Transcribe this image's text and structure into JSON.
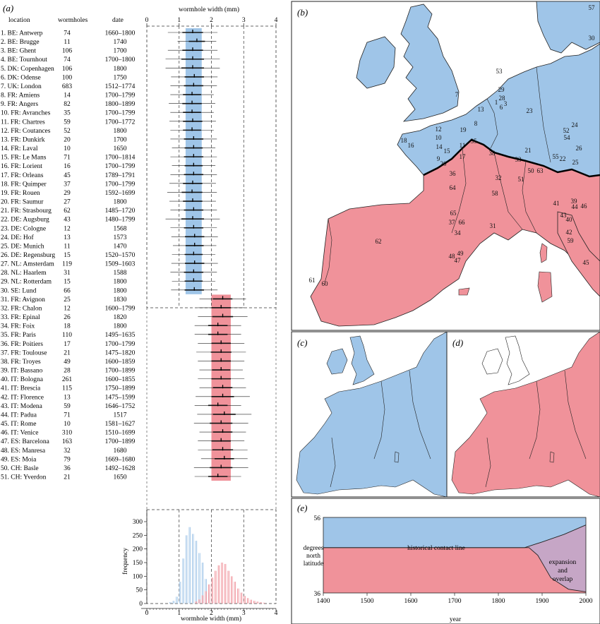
{
  "panels": {
    "a": "(a)",
    "b": "(b)",
    "c": "(c)",
    "d": "(d)",
    "e": "(e)"
  },
  "colors": {
    "north": "#9fc5e8",
    "south": "#f0929a",
    "overlap": "#c6a6c6",
    "grey": "#bbbbbb"
  },
  "table": {
    "headers": {
      "location": "location",
      "wormholes": "wormholes",
      "date": "date"
    },
    "rows": [
      {
        "loc": "1. BE: Antwerp",
        "n": "74",
        "date": "1660–1800",
        "mean": 1.42,
        "sd": 0.32
      },
      {
        "loc": "2. BE: Brugge",
        "n": "11",
        "date": "1740",
        "mean": 1.55,
        "sd": 0.25
      },
      {
        "loc": "3. BE: Ghent",
        "n": "106",
        "date": "1700",
        "mean": 1.42,
        "sd": 0.32
      },
      {
        "loc": "4. BE: Tournhout",
        "n": "74",
        "date": "1700–1800",
        "mean": 1.42,
        "sd": 0.35
      },
      {
        "loc": "5. DK: Copenhagen",
        "n": "106",
        "date": "1800",
        "mean": 1.42,
        "sd": 0.35
      },
      {
        "loc": "6. DK: Odense",
        "n": "100",
        "date": "1750",
        "mean": 1.47,
        "sd": 0.3
      },
      {
        "loc": "7. UK: London",
        "n": "683",
        "date": "1512–1774",
        "mean": 1.45,
        "sd": 0.3
      },
      {
        "loc": "8. FR: Amiens",
        "n": "14",
        "date": "1700–1799",
        "mean": 1.4,
        "sd": 0.28
      },
      {
        "loc": "9. FR: Angers",
        "n": "82",
        "date": "1800–1899",
        "mean": 1.4,
        "sd": 0.3
      },
      {
        "loc": "10. FR: Avranches",
        "n": "35",
        "date": "1700–1799",
        "mean": 1.4,
        "sd": 0.28
      },
      {
        "loc": "11. FR: Chartres",
        "n": "59",
        "date": "1700–1772",
        "mean": 1.42,
        "sd": 0.3
      },
      {
        "loc": "12. FR: Coutances",
        "n": "52",
        "date": "1800",
        "mean": 1.4,
        "sd": 0.28
      },
      {
        "loc": "13. FR: Dunkirk",
        "n": "20",
        "date": "1700",
        "mean": 1.45,
        "sd": 0.3
      },
      {
        "loc": "14. FR: Laval",
        "n": "10",
        "date": "1650",
        "mean": 1.45,
        "sd": 0.28
      },
      {
        "loc": "15. FR: Le Mans",
        "n": "71",
        "date": "1700–1814",
        "mean": 1.45,
        "sd": 0.3
      },
      {
        "loc": "16. FR: Lorient",
        "n": "16",
        "date": "1700–1799",
        "mean": 1.45,
        "sd": 0.28
      },
      {
        "loc": "17. FR: Orleans",
        "n": "45",
        "date": "1789–1791",
        "mean": 1.45,
        "sd": 0.3
      },
      {
        "loc": "18. FR: Quimper",
        "n": "37",
        "date": "1700–1799",
        "mean": 1.42,
        "sd": 0.3
      },
      {
        "loc": "19. FR: Rouen",
        "n": "29",
        "date": "1592–1699",
        "mean": 1.4,
        "sd": 0.32
      },
      {
        "loc": "20. FR: Saumur",
        "n": "27",
        "date": "1800",
        "mean": 1.42,
        "sd": 0.3
      },
      {
        "loc": "21. FR: Strasbourg",
        "n": "62",
        "date": "1485–1720",
        "mean": 1.45,
        "sd": 0.3
      },
      {
        "loc": "22. DE: Augsburg",
        "n": "43",
        "date": "1480–1799",
        "mean": 1.42,
        "sd": 0.35
      },
      {
        "loc": "23. DE: Cologne",
        "n": "12",
        "date": "1568",
        "mean": 1.45,
        "sd": 0.3
      },
      {
        "loc": "24. DE: Hof",
        "n": "13",
        "date": "1573",
        "mean": 1.48,
        "sd": 0.3
      },
      {
        "loc": "25. DE: Munich",
        "n": "11",
        "date": "1470",
        "mean": 1.48,
        "sd": 0.28
      },
      {
        "loc": "26. DE: Regensburg",
        "n": "15",
        "date": "1520–1570",
        "mean": 1.45,
        "sd": 0.28
      },
      {
        "loc": "27. NL: Amsterdam",
        "n": "119",
        "date": "1509–1603",
        "mean": 1.48,
        "sd": 0.3
      },
      {
        "loc": "28. NL: Haarlem",
        "n": "31",
        "date": "1588",
        "mean": 1.45,
        "sd": 0.3
      },
      {
        "loc": "29. NL: Rotterdam",
        "n": "15",
        "date": "1800",
        "mean": 1.45,
        "sd": 0.28
      },
      {
        "loc": "30. SE: Lund",
        "n": "66",
        "date": "1800",
        "mean": 1.47,
        "sd": 0.3
      },
      {
        "loc": "31. FR: Avignon",
        "n": "25",
        "date": "1830",
        "mean": 2.35,
        "sd": 0.3
      },
      {
        "loc": "32. FR: Chalon",
        "n": "12",
        "date": "1600–1799",
        "mean": 2.3,
        "sd": 0.3
      },
      {
        "loc": "33. FR: Epinal",
        "n": "26",
        "date": "1820",
        "mean": 2.35,
        "sd": 0.32
      },
      {
        "loc": "34. FR: Foix",
        "n": "18",
        "date": "1800",
        "mean": 2.2,
        "sd": 0.3
      },
      {
        "loc": "35. FR: Paris",
        "n": "110",
        "date": "1495–1635",
        "mean": 2.2,
        "sd": 0.3
      },
      {
        "loc": "36. FR: Poitiers",
        "n": "17",
        "date": "1700–1799",
        "mean": 2.3,
        "sd": 0.3
      },
      {
        "loc": "37. FR: Toulouse",
        "n": "21",
        "date": "1475–1820",
        "mean": 2.3,
        "sd": 0.32
      },
      {
        "loc": "38. FR: Troyes",
        "n": "49",
        "date": "1600–1859",
        "mean": 2.3,
        "sd": 0.3
      },
      {
        "loc": "39. IT: Bassano",
        "n": "28",
        "date": "1700–1899",
        "mean": 2.3,
        "sd": 0.28
      },
      {
        "loc": "40. IT: Bologna",
        "n": "261",
        "date": "1600–1855",
        "mean": 2.3,
        "sd": 0.3
      },
      {
        "loc": "41. IT: Brescia",
        "n": "115",
        "date": "1750–1899",
        "mean": 2.35,
        "sd": 0.3
      },
      {
        "loc": "42. IT: Florence",
        "n": "13",
        "date": "1475–1599",
        "mean": 2.35,
        "sd": 0.35
      },
      {
        "loc": "43. IT: Modena",
        "n": "59",
        "date": "1646–1752",
        "mean": 2.2,
        "sd": 0.3
      },
      {
        "loc": "44. IT: Padua",
        "n": "71",
        "date": "1517",
        "mean": 2.4,
        "sd": 0.35
      },
      {
        "loc": "45. IT: Rome",
        "n": "10",
        "date": "1581–1627",
        "mean": 2.3,
        "sd": 0.35
      },
      {
        "loc": "46. IT: Venice",
        "n": "310",
        "date": "1510–1699",
        "mean": 2.35,
        "sd": 0.3
      },
      {
        "loc": "47. ES: Barcelona",
        "n": "163",
        "date": "1700–1899",
        "mean": 2.3,
        "sd": 0.3
      },
      {
        "loc": "48. ES: Manresa",
        "n": "32",
        "date": "1680",
        "mean": 2.35,
        "sd": 0.32
      },
      {
        "loc": "49. ES: Moia",
        "n": "79",
        "date": "1669–1680",
        "mean": 2.4,
        "sd": 0.3
      },
      {
        "loc": "50. CH: Basle",
        "n": "36",
        "date": "1492–1628",
        "mean": 2.3,
        "sd": 0.35
      },
      {
        "loc": "51. CH: Yverdon",
        "n": "21",
        "date": "1650",
        "mean": 2.2,
        "sd": 0.3
      }
    ]
  },
  "chart_data": [
    {
      "type": "scatter",
      "title": "wormhole width (mm)",
      "xlabel": "wormhole width (mm)",
      "xlim": [
        0,
        4
      ],
      "xticks": [
        "0",
        "1",
        "2",
        "3",
        "4"
      ],
      "bands": [
        {
          "name": "north",
          "range": [
            1.2,
            1.7
          ],
          "rows": [
            1,
            30
          ]
        },
        {
          "name": "south",
          "range": [
            2.0,
            2.6
          ],
          "rows": [
            31,
            51
          ]
        }
      ],
      "series_ref": "table.rows (mean ± sd per location)"
    },
    {
      "type": "bar",
      "xlabel": "wormhole width (mm)",
      "ylabel": "frequency",
      "xlim": [
        0,
        4
      ],
      "ylim": [
        0,
        320
      ],
      "xticks": [
        "0",
        "1",
        "2",
        "3",
        "4"
      ],
      "yticks": [
        "0",
        "50",
        "100",
        "150",
        "200",
        "250",
        "300"
      ],
      "bin_width": 0.1,
      "series": [
        {
          "name": "north",
          "x": [
            0.7,
            0.8,
            0.9,
            1.0,
            1.1,
            1.2,
            1.3,
            1.4,
            1.5,
            1.6,
            1.7,
            1.8,
            1.9,
            2.0,
            2.1
          ],
          "values": [
            5,
            10,
            25,
            80,
            165,
            250,
            280,
            255,
            230,
            185,
            150,
            90,
            40,
            12,
            4
          ]
        },
        {
          "name": "south",
          "x": [
            1.5,
            1.6,
            1.7,
            1.8,
            1.9,
            2.0,
            2.1,
            2.2,
            2.3,
            2.4,
            2.5,
            2.6,
            2.7,
            2.8,
            2.9,
            3.0,
            3.1,
            3.2,
            3.3,
            3.4,
            3.5,
            3.6
          ],
          "values": [
            8,
            15,
            30,
            45,
            70,
            95,
            120,
            140,
            150,
            145,
            120,
            100,
            80,
            55,
            40,
            28,
            20,
            14,
            10,
            7,
            5,
            3
          ]
        }
      ]
    },
    {
      "type": "area",
      "ylabel": "degrees north latitude",
      "xlabel": "year",
      "xlim": [
        1400,
        2000
      ],
      "ylim": [
        36,
        56
      ],
      "xticks": [
        "1400",
        "1500",
        "1600",
        "1700",
        "1800",
        "1900",
        "2000"
      ],
      "yticks": [
        "56",
        "36"
      ],
      "annotations": [
        "historical contact line",
        "expansion and overlap"
      ],
      "series": [
        {
          "name": "north lower edge",
          "x": [
            1400,
            1860,
            1900,
            1950,
            2000
          ],
          "y": [
            48,
            48,
            49.5,
            51.5,
            54
          ]
        },
        {
          "name": "south upper edge",
          "x": [
            1400,
            1870,
            1890,
            1920,
            1960,
            2000
          ],
          "y": [
            48,
            48,
            46,
            40,
            37,
            36.3
          ]
        }
      ]
    }
  ],
  "map_labels": {
    "b": [
      "57",
      "30",
      "53",
      "7",
      "29",
      "28",
      "1",
      "3",
      "6",
      "13",
      "23",
      "8",
      "24",
      "52",
      "54",
      "26",
      "12",
      "19",
      "10",
      "18",
      "16",
      "14",
      "15",
      "11",
      "9",
      "20",
      "17",
      "35",
      "38",
      "21",
      "33",
      "50",
      "63",
      "55",
      "22",
      "25",
      "36",
      "32",
      "51",
      "64",
      "58",
      "41",
      "39",
      "44",
      "46",
      "65",
      "43",
      "40",
      "37",
      "66",
      "42",
      "59",
      "34",
      "31",
      "62",
      "48",
      "49",
      "47",
      "45",
      "60",
      "61"
    ]
  }
}
